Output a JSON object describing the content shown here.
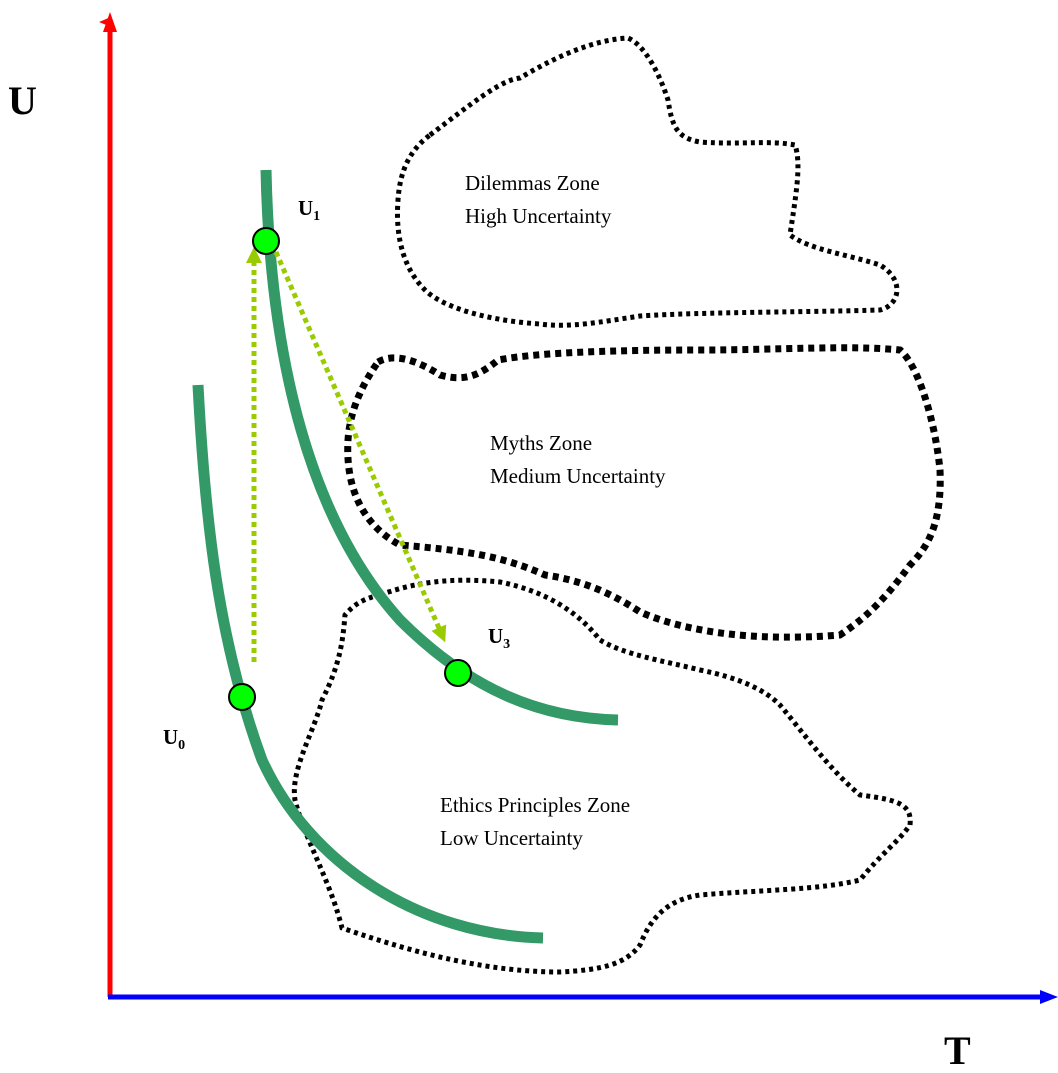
{
  "axes": {
    "y_label": "U",
    "x_label": "T",
    "y_axis_color": "#ff0000",
    "x_axis_color": "#0000ff"
  },
  "zones": [
    {
      "id": "dilemmas",
      "line1": "Dilemmas Zone",
      "line2": "High Uncertainty"
    },
    {
      "id": "myths",
      "line1": "Myths Zone",
      "line2": "Medium Uncertainty"
    },
    {
      "id": "ethics",
      "line1": "Ethics Principles Zone",
      "line2": "Low Uncertainty"
    }
  ],
  "points": [
    {
      "id": "u1",
      "base": "U",
      "sub": "1"
    },
    {
      "id": "u0",
      "base": "U",
      "sub": "0"
    },
    {
      "id": "u3",
      "base": "U",
      "sub": "3"
    }
  ],
  "colors": {
    "curve": "#339966",
    "point_fill": "#00ff00",
    "arrow": "#99cc00",
    "zone_border": "#000000"
  }
}
